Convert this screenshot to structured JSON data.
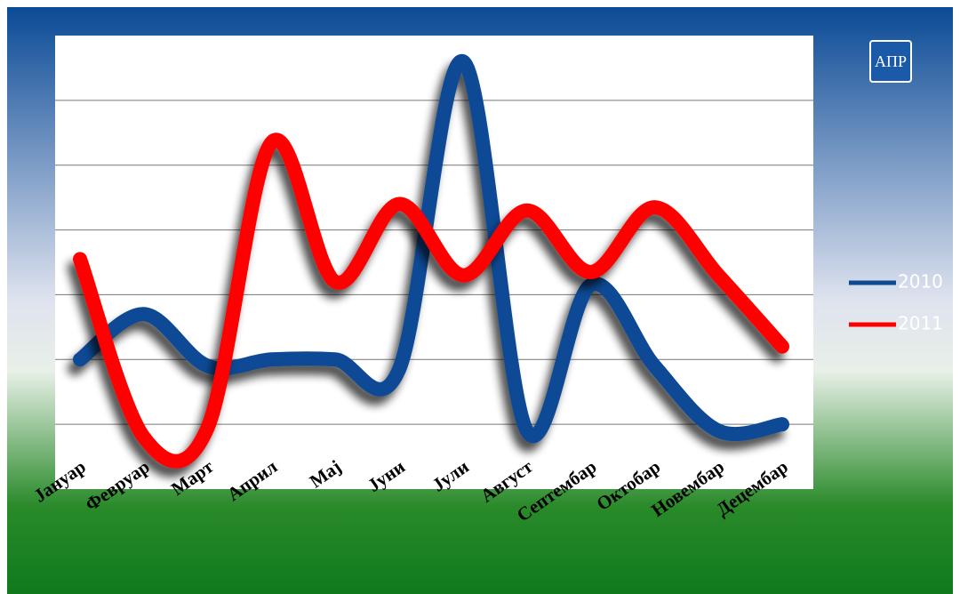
{
  "logo": "АПР",
  "chart_data": {
    "type": "line",
    "categories": [
      "Јануар",
      "Февруар",
      "Март",
      "Април",
      "Мај",
      "Јуни",
      "Јули",
      "Август",
      "Септембар",
      "Октобар",
      "Новембар",
      "Децембар"
    ],
    "series": [
      {
        "name": "2010",
        "color": "#0d4a94",
        "values": [
          2.0,
          2.7,
          1.9,
          2.0,
          2.0,
          1.85,
          6.6,
          0.9,
          3.15,
          1.9,
          0.9,
          1.0
        ]
      },
      {
        "name": "2011",
        "color": "#ff0000",
        "values": [
          3.55,
          0.8,
          0.95,
          5.35,
          3.2,
          4.4,
          3.3,
          4.3,
          3.35,
          4.35,
          3.3,
          2.2
        ]
      }
    ],
    "ylim": [
      0,
      7
    ],
    "yticks": [
      1,
      2,
      3,
      4,
      5,
      6
    ],
    "grid": true,
    "legend": "right"
  }
}
